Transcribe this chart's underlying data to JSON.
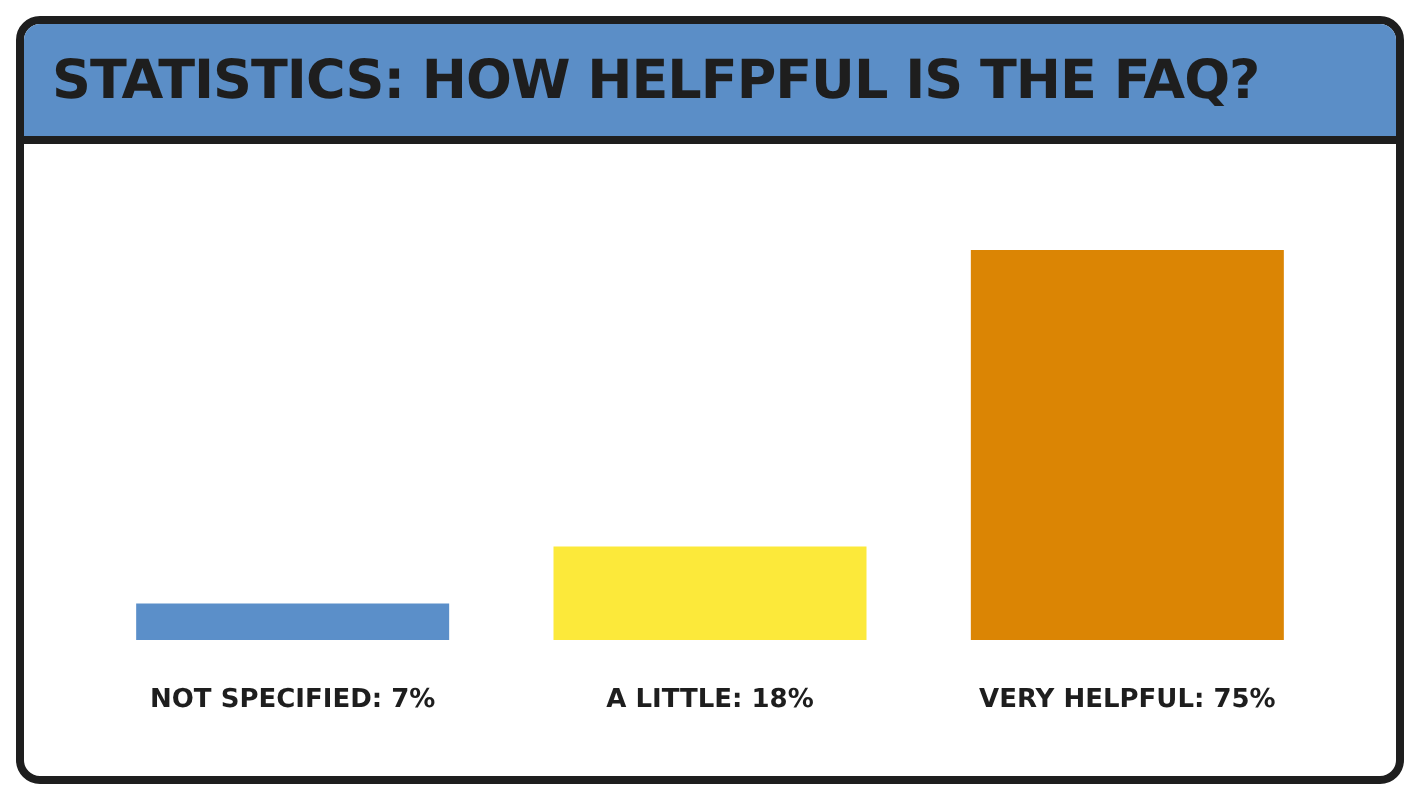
{
  "chart_data": {
    "type": "bar",
    "title": "STATISTICS: HOW HELFPFUL IS THE FAQ?",
    "categories": [
      "NOT SPECIFIED",
      "A LITTLE",
      "VERY HELPFUL"
    ],
    "values": [
      7,
      18,
      75
    ],
    "value_labels": [
      ": 7%",
      ": 18%",
      ": 75%"
    ],
    "colors": [
      "#5b8fc9",
      "#fce93a",
      "#db8504"
    ],
    "grid": false,
    "legend": false
  }
}
